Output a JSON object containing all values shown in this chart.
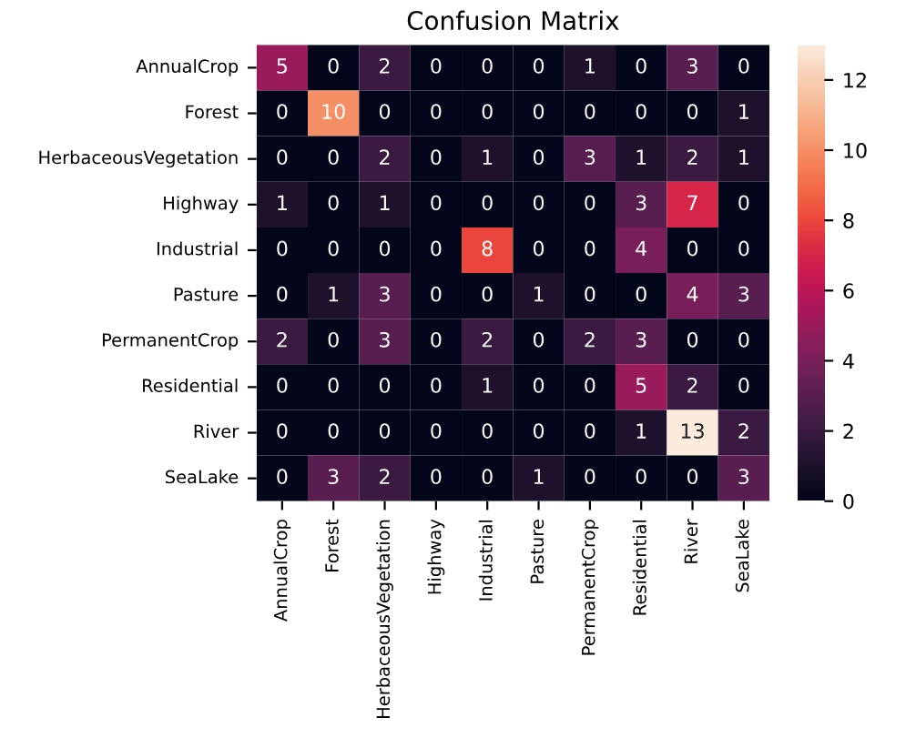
{
  "chart_data": {
    "type": "heatmap",
    "title": "Confusion Matrix",
    "categories": [
      "AnnualCrop",
      "Forest",
      "HerbaceousVegetation",
      "Highway",
      "Industrial",
      "Pasture",
      "PermanentCrop",
      "Residential",
      "River",
      "SeaLake"
    ],
    "y_categories": [
      "AnnualCrop",
      "Forest",
      "HerbaceousVegetation",
      "Highway",
      "Industrial",
      "Pasture",
      "PermanentCrop",
      "Residential",
      "River",
      "SeaLake"
    ],
    "cells": [
      [
        5,
        0,
        2,
        0,
        0,
        0,
        1,
        0,
        3,
        0
      ],
      [
        0,
        10,
        0,
        0,
        0,
        0,
        0,
        0,
        0,
        1
      ],
      [
        0,
        0,
        2,
        0,
        1,
        0,
        3,
        1,
        2,
        1
      ],
      [
        1,
        0,
        1,
        0,
        0,
        0,
        0,
        3,
        7,
        0
      ],
      [
        0,
        0,
        0,
        0,
        8,
        0,
        0,
        4,
        0,
        0
      ],
      [
        0,
        1,
        3,
        0,
        0,
        1,
        0,
        0,
        4,
        3
      ],
      [
        2,
        0,
        3,
        0,
        2,
        0,
        2,
        3,
        0,
        0
      ],
      [
        0,
        0,
        0,
        0,
        1,
        0,
        0,
        5,
        2,
        0
      ],
      [
        0,
        0,
        0,
        0,
        0,
        0,
        0,
        1,
        13,
        2
      ],
      [
        0,
        3,
        2,
        0,
        0,
        1,
        0,
        0,
        0,
        3
      ]
    ],
    "clim": [
      0,
      13
    ],
    "cticks": [
      0,
      2,
      4,
      6,
      8,
      10,
      12
    ],
    "data_labels": true
  }
}
